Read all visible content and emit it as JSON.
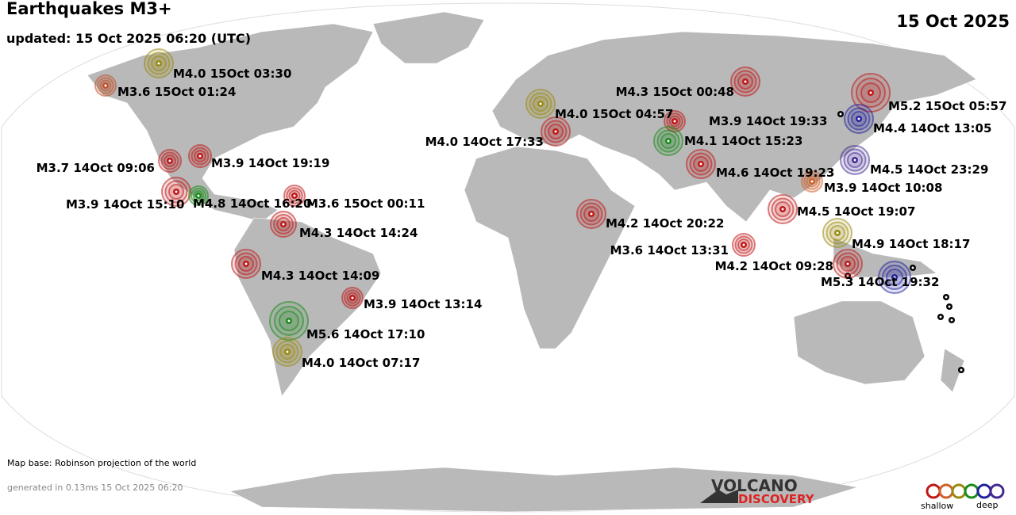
{
  "header": {
    "title": "Earthquakes M3+",
    "updated": "updated: 15 Oct 2025 06:20 (UTC)",
    "date": "15 Oct 2025"
  },
  "quakes": [
    {
      "label": "M4.0 15Oct 03:30",
      "color": "#9a8a10"
    },
    {
      "label": "M3.6 15Oct 01:24",
      "color": "#c0502a"
    },
    {
      "label": "M3.7 14Oct 09:06",
      "color": "#c01818"
    },
    {
      "label": "M3.9 14Oct 19:19",
      "color": "#c01818"
    },
    {
      "label": "M3.9 14Oct 15:10",
      "color": "#c01818"
    },
    {
      "label": "M4.8 14Oct 16:20",
      "color": "#1a8a1a"
    },
    {
      "label": "M3.6 15Oct 00:11",
      "color": "#c01818"
    },
    {
      "label": "M4.3 14Oct 14:24",
      "color": "#c01818"
    },
    {
      "label": "M4.3 14Oct 14:09",
      "color": "#c01818"
    },
    {
      "label": "M3.9 14Oct 13:14",
      "color": "#c01818"
    },
    {
      "label": "M5.6 14Oct 17:10",
      "color": "#1a8a1a"
    },
    {
      "label": "M4.0 14Oct 07:17",
      "color": "#9a8a10"
    },
    {
      "label": "M4.0 15Oct 04:57",
      "color": "#9a8a10"
    },
    {
      "label": "M4.0 14Oct 17:33",
      "color": "#c01818"
    },
    {
      "label": "M4.3 15Oct 00:48",
      "color": "#c01818"
    },
    {
      "label": "M3.9 14Oct 19:33",
      "color": "#c01818"
    },
    {
      "label": "M4.1 14Oct 15:23",
      "color": "#1a8a1a"
    },
    {
      "label": "M4.6 14Oct 19:23",
      "color": "#c01818"
    },
    {
      "label": "M5.2 15Oct 05:57",
      "color": "#c01818"
    },
    {
      "label": "M4.4 14Oct 13:05",
      "color": "#2222a0"
    },
    {
      "label": "M4.5 14Oct 23:29",
      "color": "#442a90"
    },
    {
      "label": "M3.9 14Oct 10:08",
      "color": "#d0602a"
    },
    {
      "label": "M4.2 14Oct 20:22",
      "color": "#c01818"
    },
    {
      "label": "M4.5 14Oct 19:07",
      "color": "#c01818"
    },
    {
      "label": "M4.9 14Oct 18:17",
      "color": "#9a8a10"
    },
    {
      "label": "M3.6 14Oct 13:31",
      "color": "#c01818"
    },
    {
      "label": "M4.2 14Oct 09:28",
      "color": "#c01818"
    },
    {
      "label": "M5.3 14Oct 19:32",
      "color": "#2222a0"
    }
  ],
  "footer": {
    "map_base": "Map base: Robinson projection of the world",
    "generated": "generated in 0.13ms 15 Oct 2025 06:20",
    "logo_top": "VOLCANO",
    "logo_bottom": "DISCOVERY",
    "legend_shallow": "shallow",
    "legend_deep": "deep"
  }
}
